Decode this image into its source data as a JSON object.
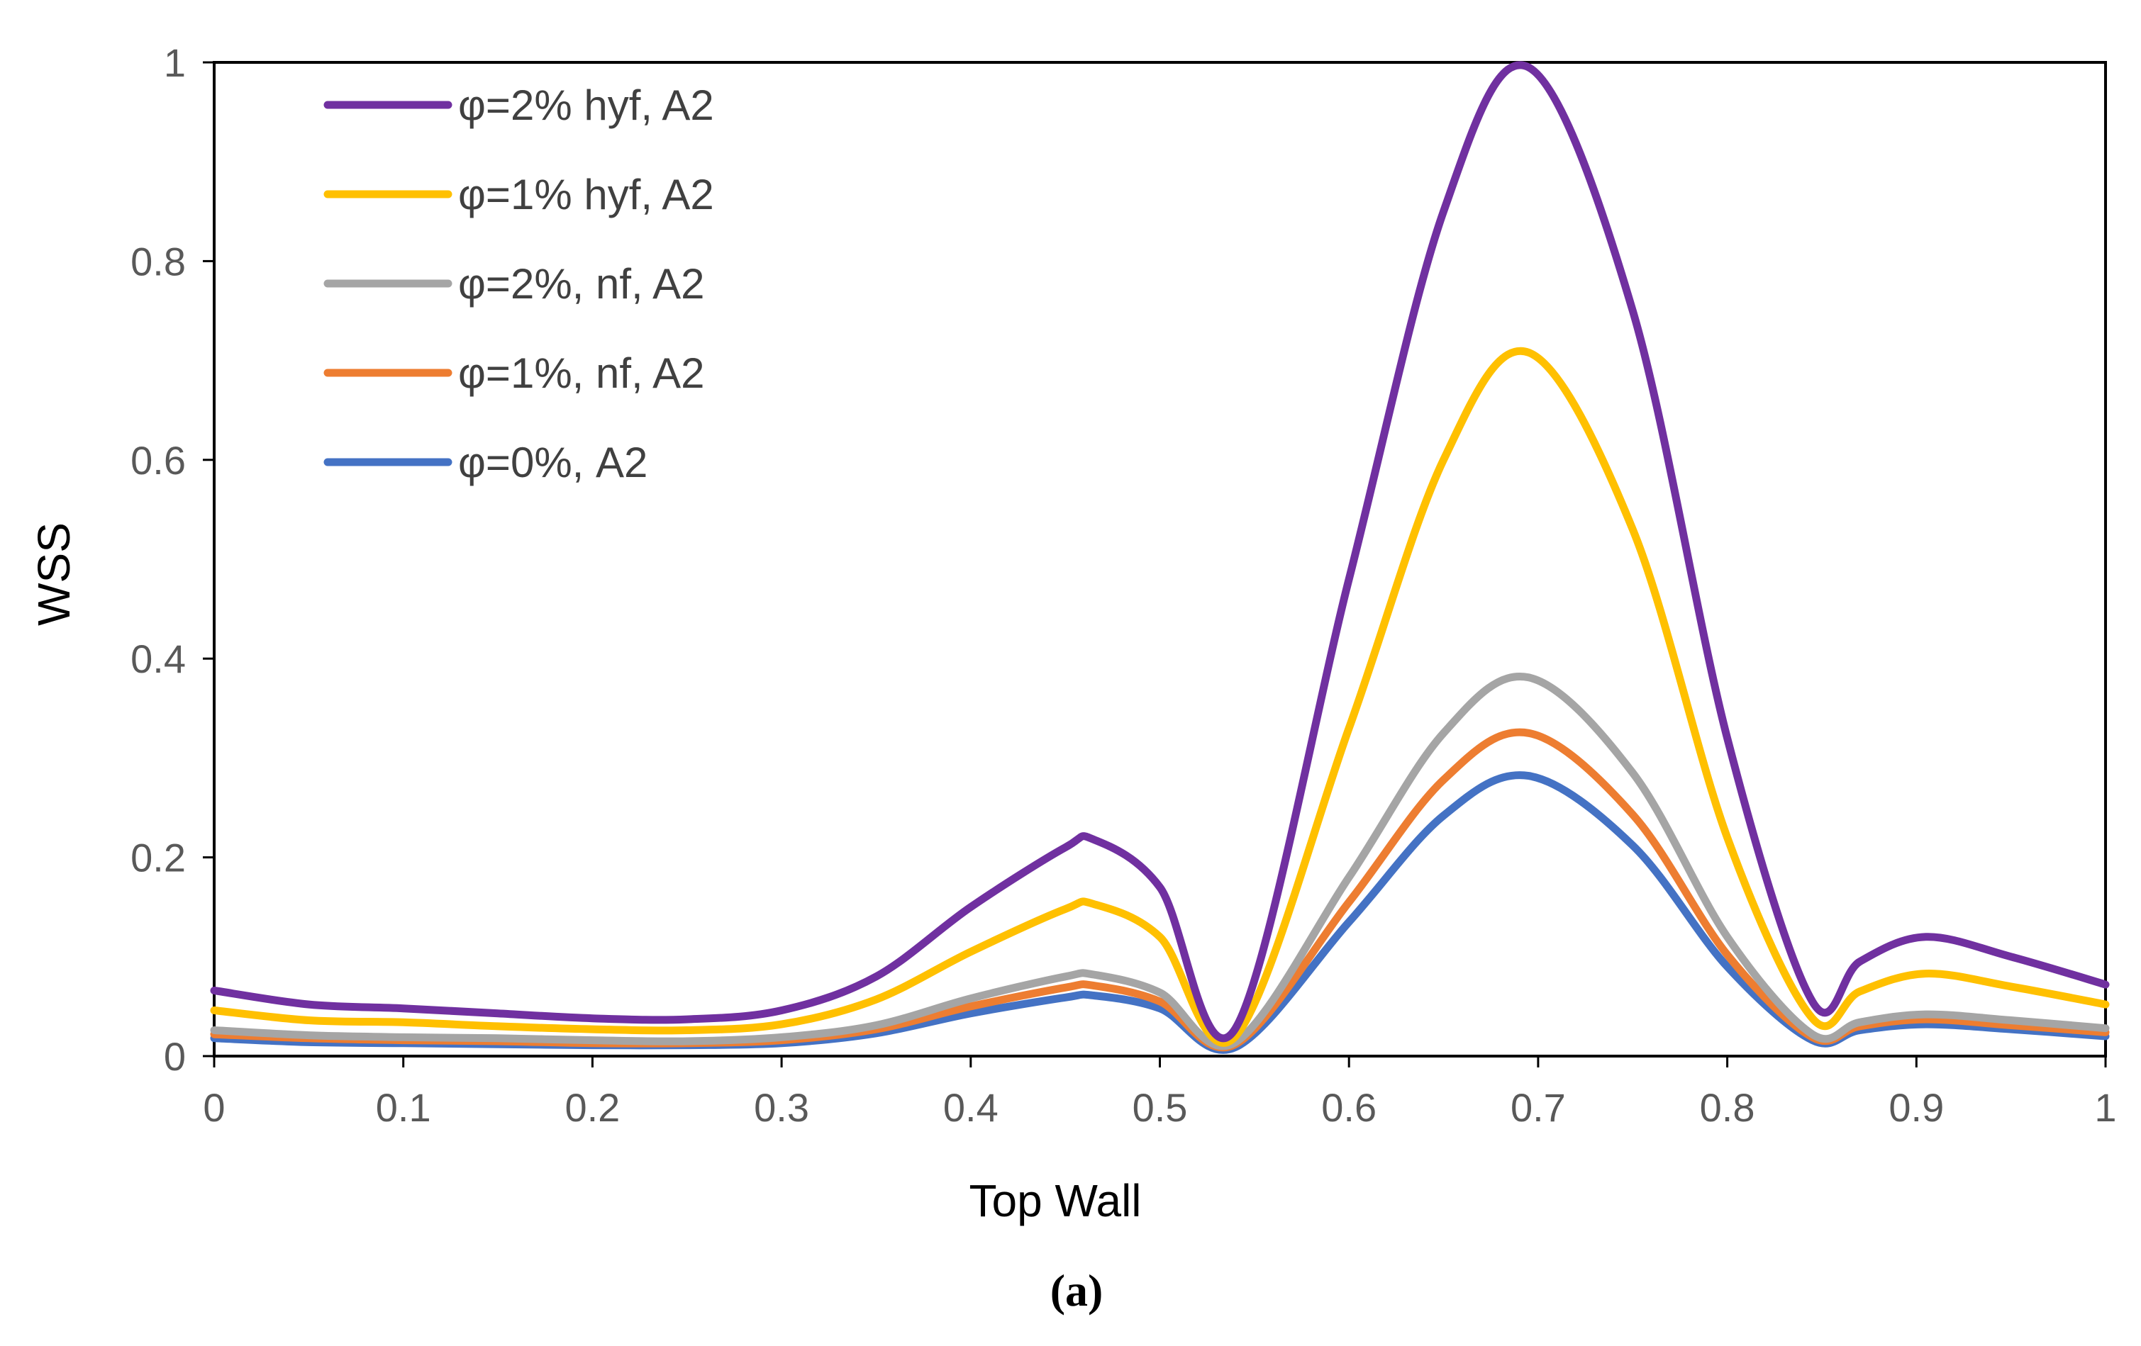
{
  "chart_data": {
    "type": "line",
    "title": "",
    "xlabel": "Top Wall",
    "ylabel": "WSS",
    "caption": "(a)",
    "xlim": [
      0,
      1
    ],
    "ylim": [
      0,
      1
    ],
    "x_ticks": [
      "0",
      "0.1",
      "0.2",
      "0.3",
      "0.4",
      "0.5",
      "0.6",
      "0.7",
      "0.8",
      "0.9",
      "1"
    ],
    "y_ticks": [
      "0",
      "0.2",
      "0.4",
      "0.6",
      "0.8",
      "1"
    ],
    "grid": false,
    "legend_position": "top-left",
    "x": [
      0,
      0.05,
      0.1,
      0.15,
      0.2,
      0.25,
      0.3,
      0.35,
      0.4,
      0.45,
      0.465,
      0.5,
      0.54,
      0.6,
      0.65,
      0.695,
      0.75,
      0.8,
      0.845,
      0.87,
      0.905,
      0.95,
      1.0
    ],
    "series": [
      {
        "name": "φ=2% hyf, A2",
        "color": "#7030A0",
        "values": [
          0.066,
          0.052,
          0.048,
          0.043,
          0.038,
          0.037,
          0.046,
          0.08,
          0.15,
          0.21,
          0.218,
          0.17,
          0.028,
          0.48,
          0.85,
          0.995,
          0.75,
          0.32,
          0.055,
          0.095,
          0.12,
          0.1,
          0.072
        ]
      },
      {
        "name": "φ=1% hyf, A2",
        "color": "#FFC000",
        "values": [
          0.046,
          0.036,
          0.034,
          0.03,
          0.027,
          0.026,
          0.032,
          0.057,
          0.105,
          0.148,
          0.153,
          0.12,
          0.02,
          0.33,
          0.6,
          0.708,
          0.53,
          0.22,
          0.038,
          0.065,
          0.083,
          0.07,
          0.052
        ]
      },
      {
        "name": "φ=2%, nf, A2",
        "color": "#A5A5A5",
        "values": [
          0.026,
          0.021,
          0.019,
          0.018,
          0.016,
          0.015,
          0.019,
          0.031,
          0.058,
          0.08,
          0.082,
          0.064,
          0.014,
          0.18,
          0.325,
          0.381,
          0.285,
          0.12,
          0.022,
          0.034,
          0.042,
          0.036,
          0.028
        ]
      },
      {
        "name": "φ=1%, nf, A2",
        "color": "#ED7D31",
        "values": [
          0.022,
          0.018,
          0.016,
          0.015,
          0.013,
          0.013,
          0.016,
          0.027,
          0.05,
          0.069,
          0.071,
          0.055,
          0.012,
          0.155,
          0.278,
          0.325,
          0.243,
          0.102,
          0.019,
          0.03,
          0.037,
          0.031,
          0.024
        ]
      },
      {
        "name": "φ=0%, A2",
        "color": "#4472C4",
        "values": [
          0.018,
          0.014,
          0.013,
          0.012,
          0.011,
          0.011,
          0.013,
          0.023,
          0.043,
          0.059,
          0.061,
          0.048,
          0.009,
          0.135,
          0.242,
          0.282,
          0.212,
          0.09,
          0.016,
          0.026,
          0.032,
          0.027,
          0.02
        ]
      }
    ]
  }
}
